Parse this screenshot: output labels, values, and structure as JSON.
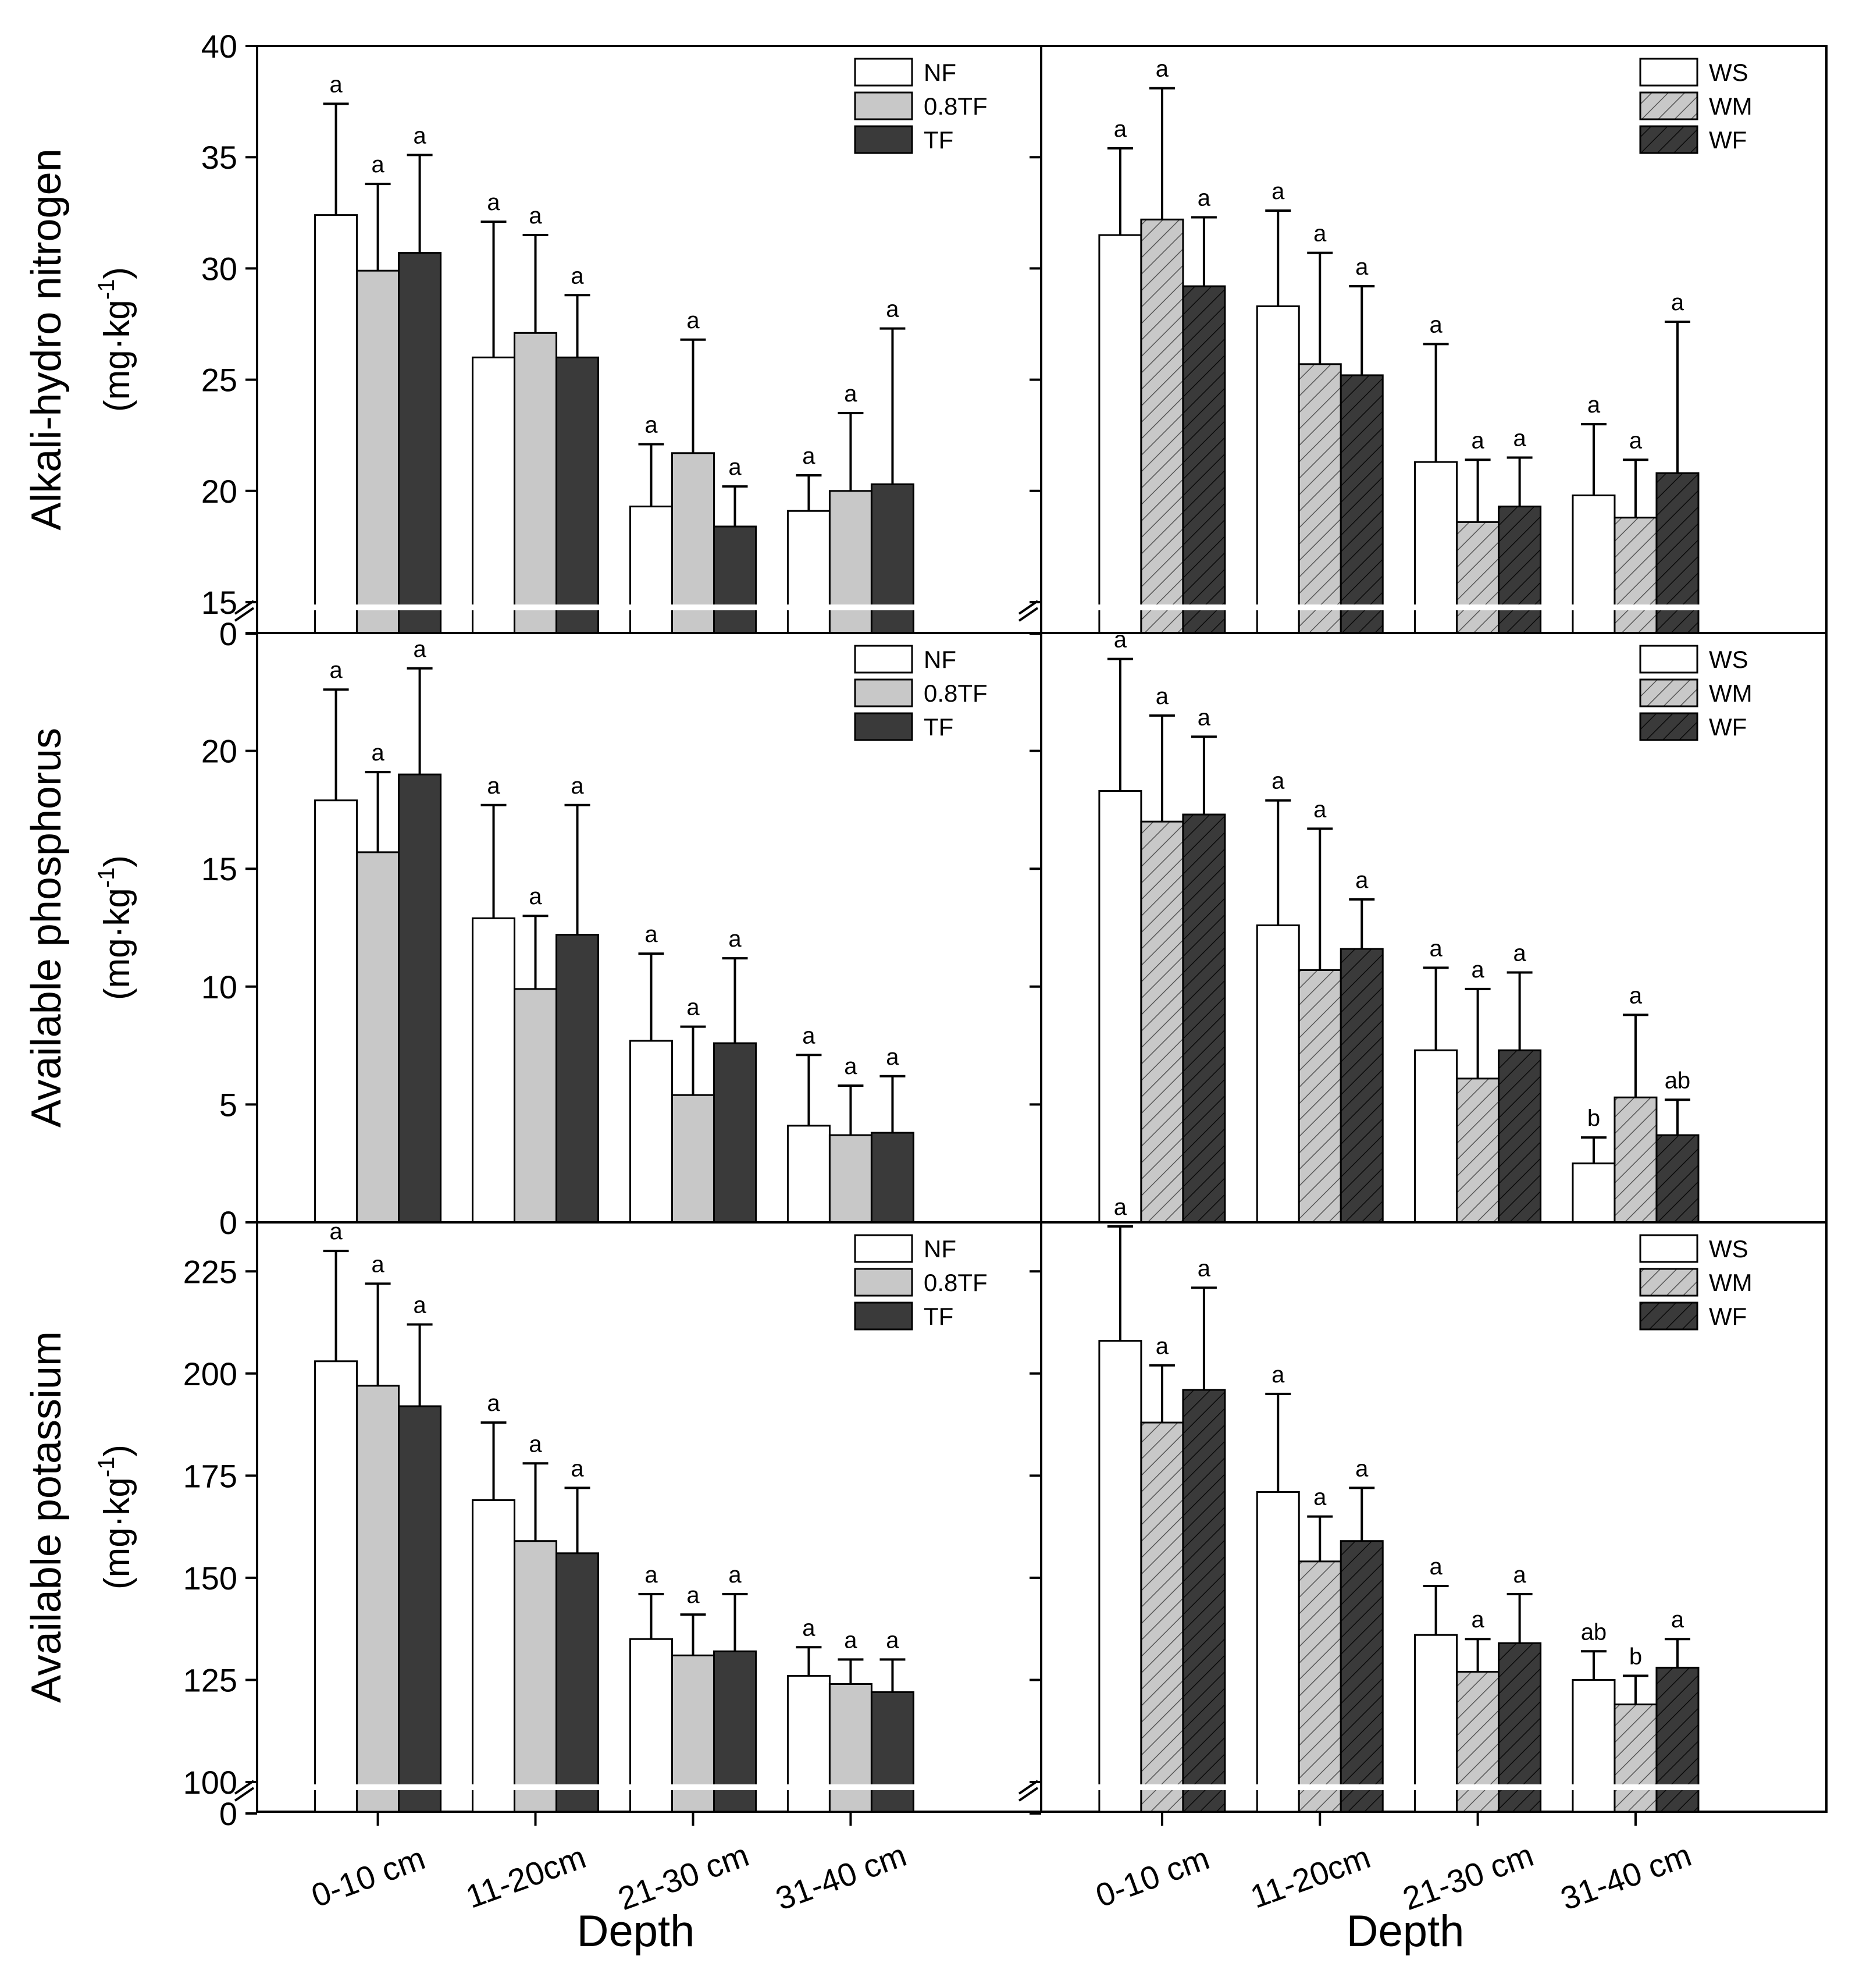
{
  "figure": {
    "xlabel": "Depth",
    "categories": [
      "0-10 cm",
      "11-20cm",
      "21-30 cm",
      "31-40 cm"
    ]
  },
  "chart_data": [
    {
      "type": "bar",
      "ylabel_lines": [
        "Alkali-hydro nitrogen",
        "(mg·kg-1)"
      ],
      "ylim": [
        15,
        40
      ],
      "axis_break": true,
      "yticks": [
        "15",
        "20",
        "25",
        "30",
        "35",
        "40"
      ],
      "extra_tick": "0",
      "grid": false,
      "legend_position": "top-right",
      "categories": [
        "0-10 cm",
        "11-20cm",
        "21-30 cm",
        "31-40 cm"
      ],
      "series": [
        {
          "name": "NF",
          "fill": "#ffffff",
          "hatch": false,
          "values": [
            32.4,
            26.0,
            19.3,
            19.1
          ],
          "errors": [
            5.0,
            6.1,
            2.8,
            1.6
          ],
          "letters": [
            "a",
            "a",
            "a",
            "a"
          ]
        },
        {
          "name": "0.8TF",
          "fill": "#c8c8c8",
          "hatch": false,
          "values": [
            29.9,
            27.1,
            21.7,
            20.0
          ],
          "errors": [
            3.9,
            4.4,
            5.1,
            3.5
          ],
          "letters": [
            "a",
            "a",
            "a",
            "a"
          ]
        },
        {
          "name": "TF",
          "fill": "#3a3a3a",
          "hatch": false,
          "values": [
            30.7,
            26.0,
            18.4,
            20.3
          ],
          "errors": [
            4.4,
            2.8,
            1.8,
            7.0
          ],
          "letters": [
            "a",
            "a",
            "a",
            "a"
          ]
        }
      ]
    },
    {
      "type": "bar",
      "ylabel_lines": [
        "Alkali-hydro nitrogen",
        "(mg·kg-1)"
      ],
      "ylim": [
        15,
        40
      ],
      "axis_break": true,
      "grid": false,
      "legend_position": "top-right",
      "categories": [
        "0-10 cm",
        "11-20cm",
        "21-30 cm",
        "31-40 cm"
      ],
      "series": [
        {
          "name": "WS",
          "fill": "#ffffff",
          "hatch": false,
          "values": [
            31.5,
            28.3,
            21.3,
            19.8
          ],
          "errors": [
            3.9,
            4.3,
            5.3,
            3.2
          ],
          "letters": [
            "a",
            "a",
            "a",
            "a"
          ]
        },
        {
          "name": "WM",
          "fill": "#c8c8c8",
          "hatch": true,
          "values": [
            32.2,
            25.7,
            18.6,
            18.8
          ],
          "errors": [
            5.9,
            5.0,
            2.8,
            2.6
          ],
          "letters": [
            "a",
            "a",
            "a",
            "a"
          ]
        },
        {
          "name": "WF",
          "fill": "#3a3a3a",
          "hatch": true,
          "values": [
            29.2,
            25.2,
            19.3,
            20.8
          ],
          "errors": [
            3.1,
            4.0,
            2.2,
            6.8
          ],
          "letters": [
            "a",
            "a",
            "a",
            "a"
          ]
        }
      ]
    },
    {
      "type": "bar",
      "ylabel_lines": [
        "Available phosphorus",
        "(mg·kg-1)"
      ],
      "ylim": [
        0,
        25
      ],
      "axis_break": false,
      "yticks": [
        "0",
        "5",
        "10",
        "15",
        "20"
      ],
      "grid": false,
      "legend_position": "top-right",
      "categories": [
        "0-10 cm",
        "11-20cm",
        "21-30 cm",
        "31-40 cm"
      ],
      "series": [
        {
          "name": "NF",
          "fill": "#ffffff",
          "hatch": false,
          "values": [
            17.9,
            12.9,
            7.7,
            4.1
          ],
          "errors": [
            4.7,
            4.8,
            3.7,
            3.0
          ],
          "letters": [
            "a",
            "a",
            "a",
            "a"
          ]
        },
        {
          "name": "0.8TF",
          "fill": "#c8c8c8",
          "hatch": false,
          "values": [
            15.7,
            9.9,
            5.4,
            3.7
          ],
          "errors": [
            3.4,
            3.1,
            2.9,
            2.1
          ],
          "letters": [
            "a",
            "a",
            "a",
            "a"
          ]
        },
        {
          "name": "TF",
          "fill": "#3a3a3a",
          "hatch": false,
          "values": [
            19.0,
            12.2,
            7.6,
            3.8
          ],
          "errors": [
            4.5,
            5.5,
            3.6,
            2.4
          ],
          "letters": [
            "a",
            "a",
            "a",
            "a"
          ]
        }
      ]
    },
    {
      "type": "bar",
      "ylabel_lines": [
        "Available phosphorus",
        "(mg·kg-1)"
      ],
      "ylim": [
        0,
        25
      ],
      "axis_break": false,
      "grid": false,
      "legend_position": "top-right",
      "categories": [
        "0-10 cm",
        "11-20cm",
        "21-30 cm",
        "31-40 cm"
      ],
      "series": [
        {
          "name": "WS",
          "fill": "#ffffff",
          "hatch": false,
          "values": [
            18.3,
            12.6,
            7.3,
            2.5
          ],
          "errors": [
            5.6,
            5.3,
            3.5,
            1.1
          ],
          "letters": [
            "a",
            "a",
            "a",
            "b"
          ]
        },
        {
          "name": "WM",
          "fill": "#c8c8c8",
          "hatch": true,
          "values": [
            17.0,
            10.7,
            6.1,
            5.3
          ],
          "errors": [
            4.5,
            6.0,
            3.8,
            3.5
          ],
          "letters": [
            "a",
            "a",
            "a",
            "a"
          ]
        },
        {
          "name": "WF",
          "fill": "#3a3a3a",
          "hatch": true,
          "values": [
            17.3,
            11.6,
            7.3,
            3.7
          ],
          "errors": [
            3.3,
            2.1,
            3.3,
            1.5
          ],
          "letters": [
            "a",
            "a",
            "a",
            "ab"
          ]
        }
      ]
    },
    {
      "type": "bar",
      "ylabel_lines": [
        "Available potassium",
        "(mg·kg-1)"
      ],
      "ylim": [
        100,
        237
      ],
      "axis_break": true,
      "yticks": [
        "100",
        "125",
        "150",
        "175",
        "200",
        "225"
      ],
      "extra_tick": "0",
      "grid": false,
      "legend_position": "top-right",
      "categories": [
        "0-10 cm",
        "11-20cm",
        "21-30 cm",
        "31-40 cm"
      ],
      "series": [
        {
          "name": "NF",
          "fill": "#ffffff",
          "hatch": false,
          "values": [
            203,
            169,
            135,
            126
          ],
          "errors": [
            27,
            19,
            11,
            7
          ],
          "letters": [
            "a",
            "a",
            "a",
            "a"
          ]
        },
        {
          "name": "0.8TF",
          "fill": "#c8c8c8",
          "hatch": false,
          "values": [
            197,
            159,
            131,
            124
          ],
          "errors": [
            25,
            19,
            10,
            6
          ],
          "letters": [
            "a",
            "a",
            "a",
            "a"
          ]
        },
        {
          "name": "TF",
          "fill": "#3a3a3a",
          "hatch": false,
          "values": [
            192,
            156,
            132,
            122
          ],
          "errors": [
            20,
            16,
            14,
            8
          ],
          "letters": [
            "a",
            "a",
            "a",
            "a"
          ]
        }
      ]
    },
    {
      "type": "bar",
      "ylabel_lines": [
        "Available potassium",
        "(mg·kg-1)"
      ],
      "ylim": [
        100,
        237
      ],
      "axis_break": true,
      "grid": false,
      "legend_position": "top-right",
      "categories": [
        "0-10 cm",
        "11-20cm",
        "21-30 cm",
        "31-40 cm"
      ],
      "series": [
        {
          "name": "WS",
          "fill": "#ffffff",
          "hatch": false,
          "values": [
            208,
            171,
            136,
            125
          ],
          "errors": [
            28,
            24,
            12,
            7
          ],
          "letters": [
            "a",
            "a",
            "a",
            "ab"
          ]
        },
        {
          "name": "WM",
          "fill": "#c8c8c8",
          "hatch": true,
          "values": [
            188,
            154,
            127,
            119
          ],
          "errors": [
            14,
            11,
            8,
            7
          ],
          "letters": [
            "a",
            "a",
            "a",
            "b"
          ]
        },
        {
          "name": "WF",
          "fill": "#3a3a3a",
          "hatch": true,
          "values": [
            196,
            159,
            134,
            128
          ],
          "errors": [
            25,
            13,
            12,
            7
          ],
          "letters": [
            "a",
            "a",
            "a",
            "a"
          ]
        }
      ]
    }
  ]
}
